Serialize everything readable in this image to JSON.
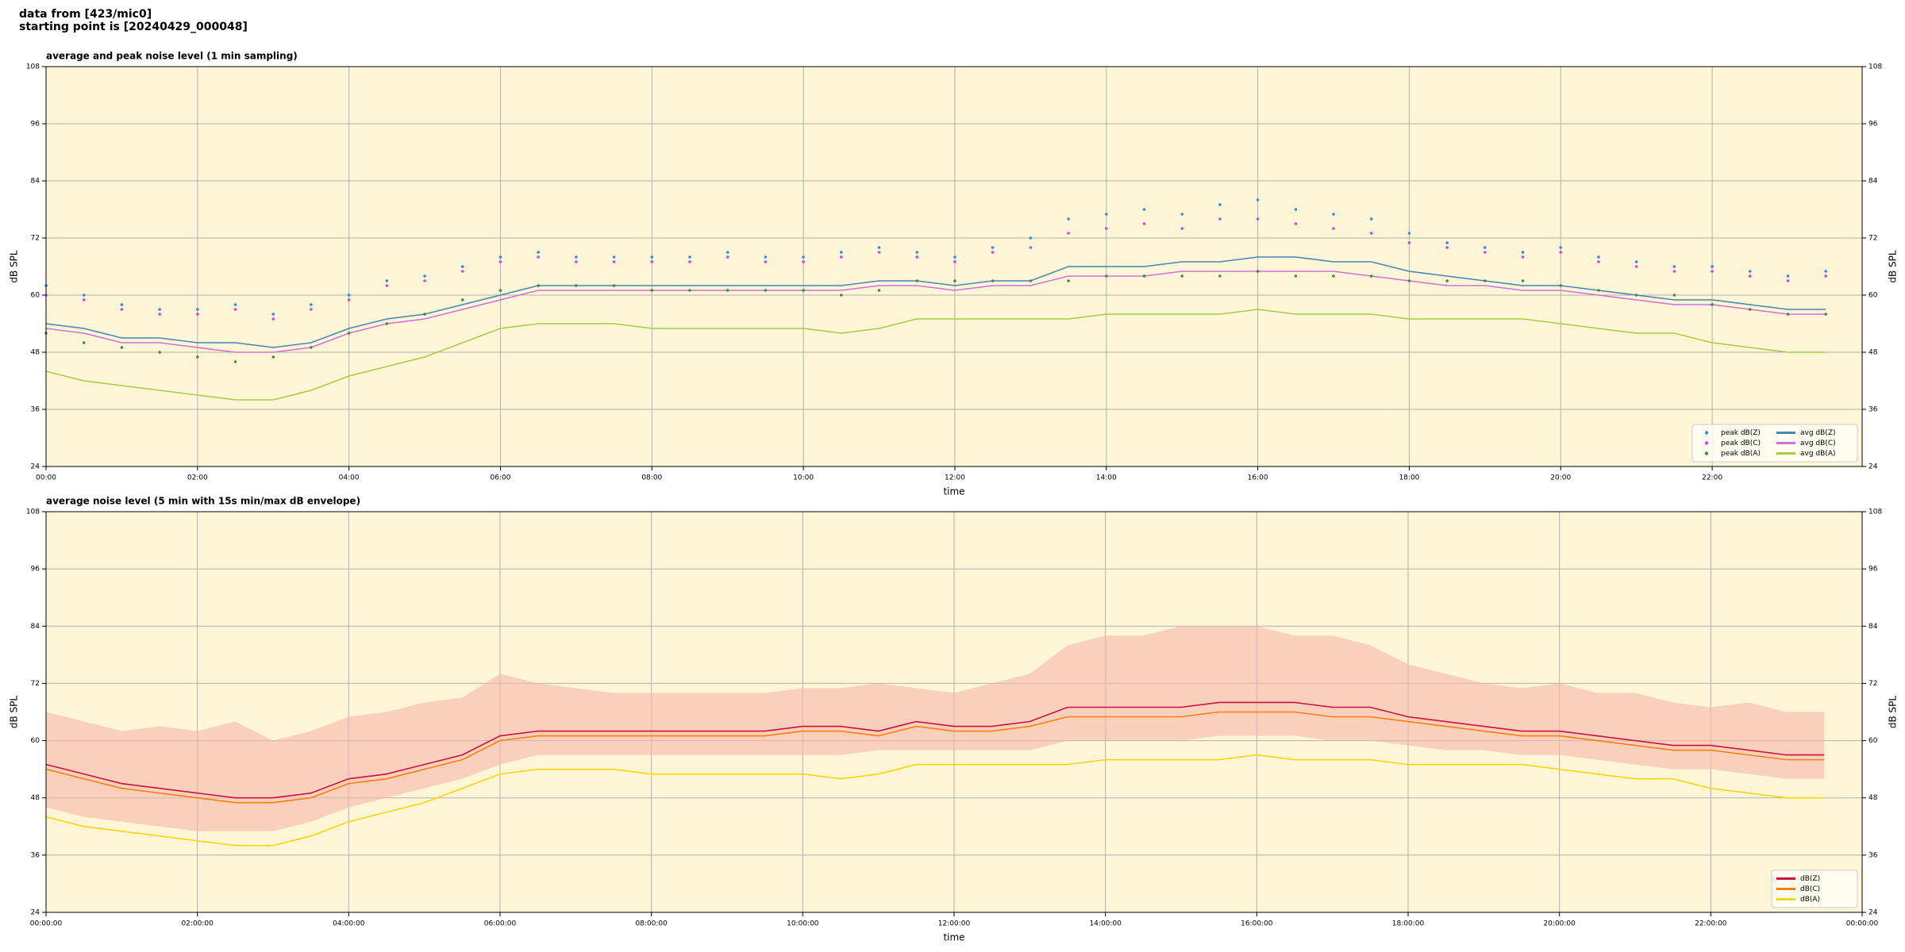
{
  "figure_title": [
    "data from [423/mic0]",
    "starting point is [20240429_000048]"
  ],
  "chart_data": [
    {
      "type": "line",
      "title": "average and peak noise level (1 min sampling)",
      "xlabel": "time",
      "ylabel": "dB SPL",
      "x": [
        0,
        0.5,
        1,
        1.5,
        2,
        2.5,
        3,
        3.5,
        4,
        4.5,
        5,
        5.5,
        6,
        6.5,
        7,
        7.5,
        8,
        8.5,
        9,
        9.5,
        10,
        10.5,
        11,
        11.5,
        12,
        12.5,
        13,
        13.5,
        14,
        14.5,
        15,
        15.5,
        16,
        16.5,
        17,
        17.5,
        18,
        18.5,
        19,
        19.5,
        20,
        20.5,
        21,
        21.5,
        22,
        22.5,
        23,
        23.5
      ],
      "xlim": [
        0,
        23.98
      ],
      "ylim": [
        24,
        108
      ],
      "yticks": [
        24,
        36,
        48,
        60,
        72,
        84,
        96,
        108
      ],
      "xticks": [
        {
          "value": 0,
          "label": "00:00"
        },
        {
          "value": 2,
          "label": "02:00"
        },
        {
          "value": 4,
          "label": "04:00"
        },
        {
          "value": 6,
          "label": "06:00"
        },
        {
          "value": 8,
          "label": "08:00"
        },
        {
          "value": 10,
          "label": "10:00"
        },
        {
          "value": 12,
          "label": "12:00"
        },
        {
          "value": 14,
          "label": "14:00"
        },
        {
          "value": 16,
          "label": "16:00"
        },
        {
          "value": 18,
          "label": "18:00"
        },
        {
          "value": 20,
          "label": "20:00"
        },
        {
          "value": 22,
          "label": "22:00"
        }
      ],
      "grid": true,
      "legend": "lower right",
      "legend_columns": 2,
      "background": "#fff6d8",
      "series": [
        {
          "name": "peak dB(Z)",
          "style": "markers",
          "color": "#2b8fe0",
          "values": [
            62,
            60,
            58,
            57,
            57,
            58,
            56,
            58,
            60,
            63,
            64,
            66,
            68,
            69,
            68,
            68,
            68,
            68,
            69,
            68,
            68,
            69,
            70,
            69,
            68,
            70,
            72,
            76,
            77,
            78,
            77,
            79,
            80,
            78,
            77,
            76,
            73,
            71,
            70,
            69,
            70,
            68,
            67,
            66,
            66,
            65,
            64,
            65
          ]
        },
        {
          "name": "peak dB(C)",
          "style": "markers",
          "color": "#e040e0",
          "values": [
            60,
            59,
            57,
            56,
            56,
            57,
            55,
            57,
            59,
            62,
            63,
            65,
            67,
            68,
            67,
            67,
            67,
            67,
            68,
            67,
            67,
            68,
            69,
            68,
            67,
            69,
            70,
            73,
            74,
            75,
            74,
            76,
            76,
            75,
            74,
            73,
            71,
            70,
            69,
            68,
            69,
            67,
            66,
            65,
            65,
            64,
            63,
            64
          ]
        },
        {
          "name": "peak dB(A)",
          "style": "markers",
          "color": "#3f8f3f",
          "values": [
            52,
            50,
            49,
            48,
            47,
            46,
            47,
            49,
            52,
            54,
            56,
            59,
            61,
            62,
            62,
            62,
            61,
            61,
            61,
            61,
            61,
            60,
            61,
            63,
            63,
            63,
            63,
            63,
            64,
            64,
            64,
            64,
            65,
            64,
            64,
            64,
            63,
            63,
            63,
            63,
            62,
            61,
            60,
            60,
            58,
            57,
            56,
            56
          ]
        },
        {
          "name": "avg dB(Z)",
          "style": "line",
          "color": "#4a86b4",
          "values": [
            54,
            53,
            51,
            51,
            50,
            50,
            49,
            50,
            53,
            55,
            56,
            58,
            60,
            62,
            62,
            62,
            62,
            62,
            62,
            62,
            62,
            62,
            63,
            63,
            62,
            63,
            63,
            66,
            66,
            66,
            67,
            67,
            68,
            68,
            67,
            67,
            65,
            64,
            63,
            62,
            62,
            61,
            60,
            59,
            59,
            58,
            57,
            57
          ]
        },
        {
          "name": "avg dB(C)",
          "style": "line",
          "color": "#d070d8",
          "values": [
            53,
            52,
            50,
            50,
            49,
            48,
            48,
            49,
            52,
            54,
            55,
            57,
            59,
            61,
            61,
            61,
            61,
            61,
            61,
            61,
            61,
            61,
            62,
            62,
            61,
            62,
            62,
            64,
            64,
            64,
            65,
            65,
            65,
            65,
            65,
            64,
            63,
            62,
            62,
            61,
            61,
            60,
            59,
            58,
            58,
            57,
            56,
            56
          ]
        },
        {
          "name": "avg dB(A)",
          "style": "line",
          "color": "#a8cc40",
          "values": [
            44,
            42,
            41,
            40,
            39,
            38,
            38,
            40,
            43,
            45,
            47,
            50,
            53,
            54,
            54,
            54,
            53,
            53,
            53,
            53,
            53,
            52,
            53,
            55,
            55,
            55,
            55,
            55,
            56,
            56,
            56,
            56,
            57,
            56,
            56,
            56,
            55,
            55,
            55,
            55,
            54,
            53,
            52,
            52,
            50,
            49,
            48,
            48
          ]
        }
      ]
    },
    {
      "type": "line",
      "title": "average noise level (5 min with 15s min/max dB envelope)",
      "xlabel": "time",
      "ylabel": "dB SPL",
      "x": [
        0,
        0.5,
        1,
        1.5,
        2,
        2.5,
        3,
        3.5,
        4,
        4.5,
        5,
        5.5,
        6,
        6.5,
        7,
        7.5,
        8,
        8.5,
        9,
        9.5,
        10,
        10.5,
        11,
        11.5,
        12,
        12.5,
        13,
        13.5,
        14,
        14.5,
        15,
        15.5,
        16,
        16.5,
        17,
        17.5,
        18,
        18.5,
        19,
        19.5,
        20,
        20.5,
        21,
        21.5,
        22,
        22.5,
        23,
        23.5
      ],
      "xlim": [
        0,
        24
      ],
      "ylim": [
        24,
        108
      ],
      "yticks": [
        24,
        36,
        48,
        60,
        72,
        84,
        96,
        108
      ],
      "xticks": [
        {
          "value": 0,
          "label": "00:00:00"
        },
        {
          "value": 2,
          "label": "02:00:00"
        },
        {
          "value": 4,
          "label": "04:00:00"
        },
        {
          "value": 6,
          "label": "06:00:00"
        },
        {
          "value": 8,
          "label": "08:00:00"
        },
        {
          "value": 10,
          "label": "10:00:00"
        },
        {
          "value": 12,
          "label": "12:00:00"
        },
        {
          "value": 14,
          "label": "14:00:00"
        },
        {
          "value": 16,
          "label": "16:00:00"
        },
        {
          "value": 18,
          "label": "18:00:00"
        },
        {
          "value": 20,
          "label": "20:00:00"
        },
        {
          "value": 22,
          "label": "22:00:00"
        },
        {
          "value": 24,
          "label": "00:00:00"
        }
      ],
      "grid": true,
      "legend": "lower right",
      "legend_columns": 1,
      "background": "#fff6d8",
      "envelope": {
        "color": "#f4b8a8",
        "low": [
          46,
          44,
          43,
          42,
          41,
          41,
          41,
          43,
          46,
          48,
          50,
          52,
          55,
          57,
          57,
          57,
          57,
          57,
          57,
          57,
          57,
          57,
          58,
          58,
          58,
          58,
          58,
          60,
          60,
          60,
          60,
          61,
          61,
          61,
          60,
          60,
          59,
          58,
          58,
          57,
          57,
          56,
          55,
          54,
          54,
          53,
          52,
          52
        ],
        "high": [
          66,
          64,
          62,
          63,
          62,
          64,
          60,
          62,
          65,
          66,
          68,
          69,
          74,
          72,
          71,
          70,
          70,
          70,
          70,
          70,
          71,
          71,
          72,
          71,
          70,
          72,
          74,
          80,
          82,
          82,
          84,
          84,
          84,
          82,
          82,
          80,
          76,
          74,
          72,
          71,
          72,
          70,
          70,
          68,
          67,
          68,
          66,
          66
        ]
      },
      "series": [
        {
          "name": "dB(Z)",
          "style": "line",
          "color": "#cc1040",
          "values": [
            55,
            53,
            51,
            50,
            49,
            48,
            48,
            49,
            52,
            53,
            55,
            57,
            61,
            62,
            62,
            62,
            62,
            62,
            62,
            62,
            63,
            63,
            62,
            64,
            63,
            63,
            64,
            67,
            67,
            67,
            67,
            68,
            68,
            68,
            67,
            67,
            65,
            64,
            63,
            62,
            62,
            61,
            60,
            59,
            59,
            58,
            57,
            57
          ]
        },
        {
          "name": "dB(C)",
          "style": "line",
          "color": "#ff8000",
          "values": [
            54,
            52,
            50,
            49,
            48,
            47,
            47,
            48,
            51,
            52,
            54,
            56,
            60,
            61,
            61,
            61,
            61,
            61,
            61,
            61,
            62,
            62,
            61,
            63,
            62,
            62,
            63,
            65,
            65,
            65,
            65,
            66,
            66,
            66,
            65,
            65,
            64,
            63,
            62,
            61,
            61,
            60,
            59,
            58,
            58,
            57,
            56,
            56
          ]
        },
        {
          "name": "dB(A)",
          "style": "line",
          "color": "#ffd700",
          "values": [
            44,
            42,
            41,
            40,
            39,
            38,
            38,
            40,
            43,
            45,
            47,
            50,
            53,
            54,
            54,
            54,
            53,
            53,
            53,
            53,
            53,
            52,
            53,
            55,
            55,
            55,
            55,
            55,
            56,
            56,
            56,
            56,
            57,
            56,
            56,
            56,
            55,
            55,
            55,
            55,
            54,
            53,
            52,
            52,
            50,
            49,
            48,
            48
          ]
        }
      ]
    }
  ]
}
